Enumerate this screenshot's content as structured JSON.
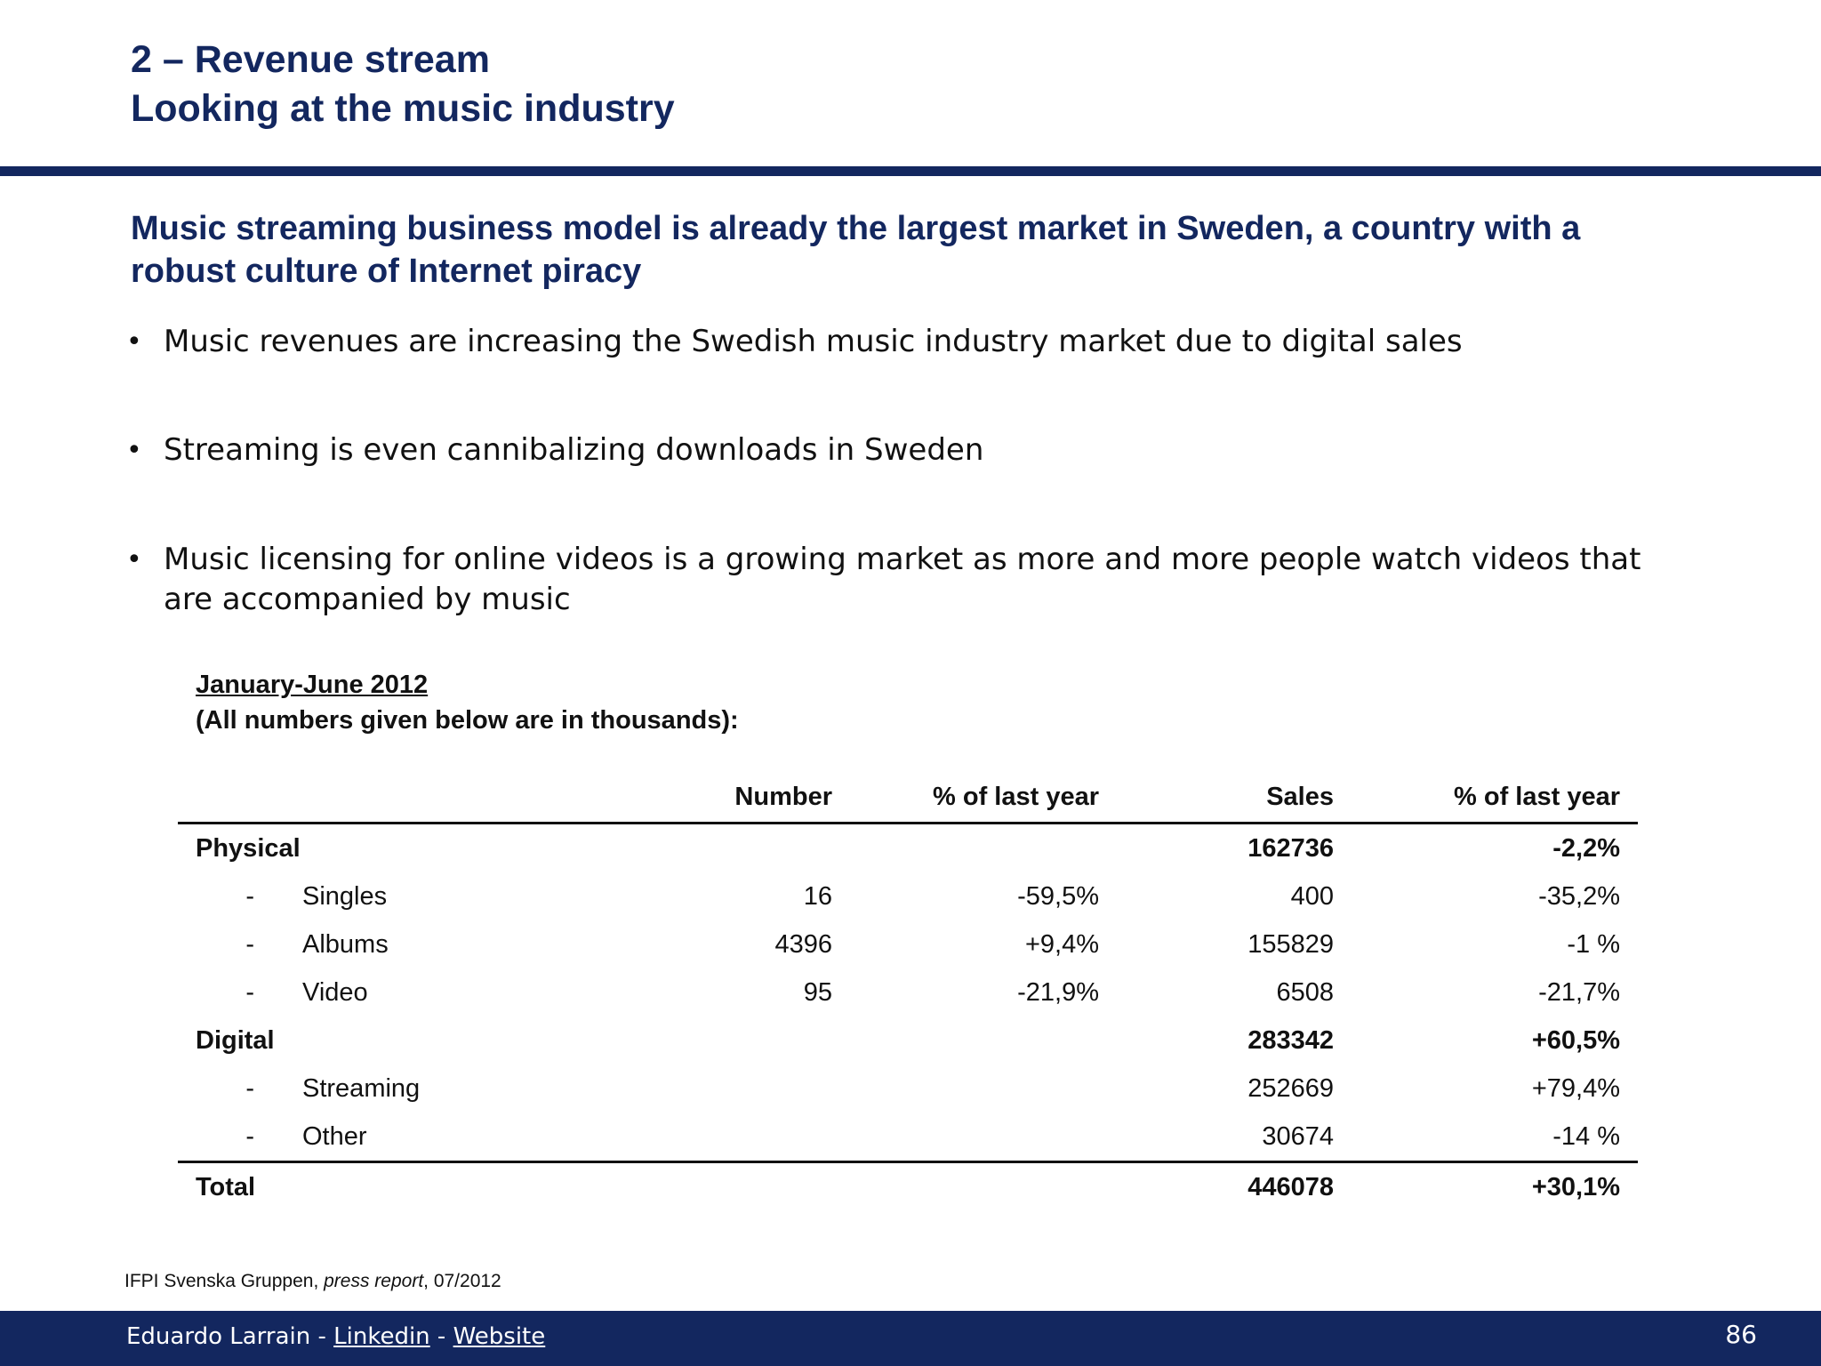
{
  "header": {
    "title_line1": "2 – Revenue stream",
    "title_line2": "Looking at the music industry"
  },
  "subtitle": "Music streaming business model is already the largest market in Sweden, a country with a robust culture of Internet piracy",
  "bullets": [
    "Music revenues are increasing the Swedish music industry market due to digital sales",
    "Streaming is even cannibalizing downloads in Sweden",
    "Music licensing for online videos is a growing market as more and more people watch videos that are accompanied by music"
  ],
  "table": {
    "heading_line1": "January-June 2012",
    "heading_line2": "(All numbers given below are in thousands):",
    "columns": [
      "Number",
      "% of last year",
      "Sales",
      "% of last year"
    ],
    "rows": [
      {
        "dash": "",
        "label": "Physical",
        "number": "",
        "pct_number": "",
        "sales": "162736",
        "pct_sales": "-2,2%"
      },
      {
        "dash": "-",
        "label": "Singles",
        "number": "16",
        "pct_number": "-59,5%",
        "sales": "400",
        "pct_sales": "-35,2%"
      },
      {
        "dash": "-",
        "label": "Albums",
        "number": "4396",
        "pct_number": "+9,4%",
        "sales": "155829",
        "pct_sales": "-1 %"
      },
      {
        "dash": "-",
        "label": "Video",
        "number": "95",
        "pct_number": "-21,9%",
        "sales": "6508",
        "pct_sales": "-21,7%"
      },
      {
        "dash": "",
        "label": "Digital",
        "number": "",
        "pct_number": "",
        "sales": "283342",
        "pct_sales": "+60,5%"
      },
      {
        "dash": "-",
        "label": "Streaming",
        "number": "",
        "pct_number": "",
        "sales": "252669",
        "pct_sales": "+79,4%"
      },
      {
        "dash": "-",
        "label": "Other",
        "number": "",
        "pct_number": "",
        "sales": "30674",
        "pct_sales": "-14 %"
      },
      {
        "dash": "",
        "label": "Total",
        "number": "",
        "pct_number": "",
        "sales": "446078",
        "pct_sales": "+30,1%"
      }
    ]
  },
  "source": {
    "org": "IFPI Svenska Gruppen, ",
    "doc": "press report",
    "date": ", 07/2012"
  },
  "footer": {
    "author": "Eduardo Larrain - ",
    "sep": " - ",
    "linkedin": "Linkedin",
    "website": "Website",
    "page_number": "86"
  },
  "colors": {
    "brand_navy": "#13275f"
  }
}
